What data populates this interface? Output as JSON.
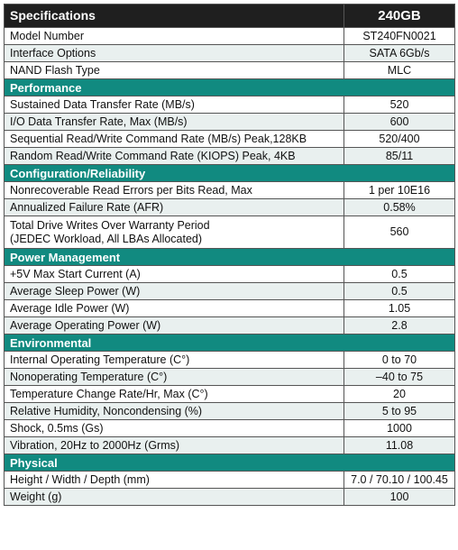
{
  "header": {
    "title": "Specifications",
    "capacity": "240GB"
  },
  "groups": [
    {
      "section": "",
      "rows": [
        {
          "label": "Model Number",
          "value": "ST240FN0021"
        },
        {
          "label": "Interface Options",
          "value": "SATA 6Gb/s"
        },
        {
          "label": "NAND Flash Type",
          "value": "MLC"
        }
      ]
    },
    {
      "section": "Performance",
      "rows": [
        {
          "label": "Sustained Data Transfer Rate (MB/s)",
          "value": "520"
        },
        {
          "label": "I/O Data Transfer Rate, Max (MB/s)",
          "value": "600"
        },
        {
          "label": "Sequential Read/Write Command Rate (MB/s) Peak,128KB",
          "value": "520/400"
        },
        {
          "label": "Random Read/Write Command Rate (KIOPS) Peak, 4KB",
          "value": "85/11"
        }
      ]
    },
    {
      "section": "Configuration/Reliability",
      "rows": [
        {
          "label": "Nonrecoverable Read Errors per Bits Read, Max",
          "value": "1 per 10E16"
        },
        {
          "label": "Annualized Failure Rate (AFR)",
          "value": "0.58%"
        },
        {
          "label": "Total Drive Writes Over Warranty Period\n(JEDEC Workload, All LBAs Allocated)",
          "value": "560"
        }
      ]
    },
    {
      "section": "Power Management",
      "rows": [
        {
          "label": "+5V Max Start Current (A)",
          "value": "0.5"
        },
        {
          "label": "Average Sleep Power (W)",
          "value": "0.5"
        },
        {
          "label": "Average Idle Power (W)",
          "value": "1.05"
        },
        {
          "label": "Average Operating Power (W)",
          "value": "2.8"
        }
      ]
    },
    {
      "section": "Environmental",
      "rows": [
        {
          "label": "Internal Operating Temperature (C°)",
          "value": "0 to 70"
        },
        {
          "label": "Nonoperating Temperature (C°)",
          "value": "–40 to 75"
        },
        {
          "label": "Temperature Change Rate/Hr, Max (C°)",
          "value": "20"
        },
        {
          "label": "Relative Humidity, Noncondensing (%)",
          "value": "5 to 95"
        },
        {
          "label": "Shock, 0.5ms (Gs)",
          "value": "1000"
        },
        {
          "label": "Vibration, 20Hz to 2000Hz (Grms)",
          "value": "11.08"
        }
      ]
    },
    {
      "section": "Physical",
      "rows": [
        {
          "label": "Height / Width / Depth (mm)",
          "value": "7.0 / 70.10 / 100.45"
        },
        {
          "label": "Weight (g)",
          "value": "100"
        }
      ]
    }
  ],
  "colors": {
    "header_bg": "#1f1f1f",
    "section_bg": "#118a80",
    "alt_row_bg": "#e9f0ef"
  }
}
